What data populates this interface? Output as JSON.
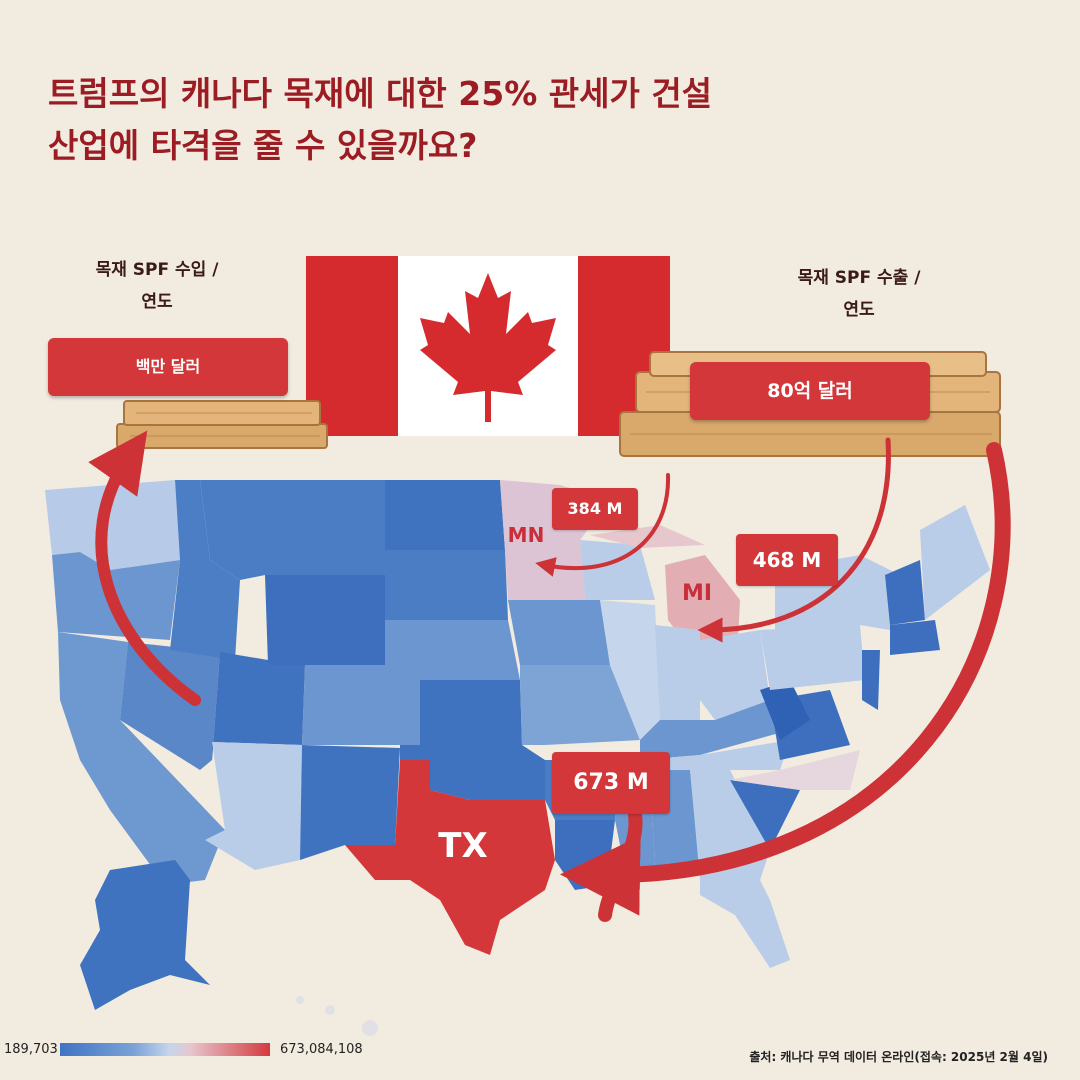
{
  "title": {
    "line1": "트럼프의 캐나다 목재에 대한 25% 관세가 건설",
    "line2": "산업에 타격을 줄 수 있을까요?"
  },
  "left_panel": {
    "label_line1": "목재 SPF 수입 /",
    "label_line2": "연도",
    "unit_button": "백만 달러"
  },
  "right_panel": {
    "label_line1": "목재 SPF 수출 /",
    "label_line2": "연도",
    "total_button": "80억 달러"
  },
  "states": {
    "mn": {
      "code": "MN",
      "value_label": "384 M"
    },
    "mi": {
      "code": "MI",
      "value_label": "468 M"
    },
    "tx": {
      "code": "TX",
      "value_label": "673 M"
    }
  },
  "legend": {
    "min": "189,703",
    "max": "673,084,108",
    "colors": [
      "#3f73c4",
      "#7aa2d6",
      "#c5d5ec",
      "#e6c7cd",
      "#d33a3f"
    ]
  },
  "source": "출처: 캐나다 무역 데이터 온라인(접속: 2025년 2월 4일)",
  "colors": {
    "accent_red": "#d3373a",
    "title_red": "#9b1c22",
    "map_blue_dark": "#3d6fbe",
    "map_blue_mid": "#6b96cf",
    "map_blue_light": "#b9cde8",
    "background": "#f2ebe0"
  }
}
